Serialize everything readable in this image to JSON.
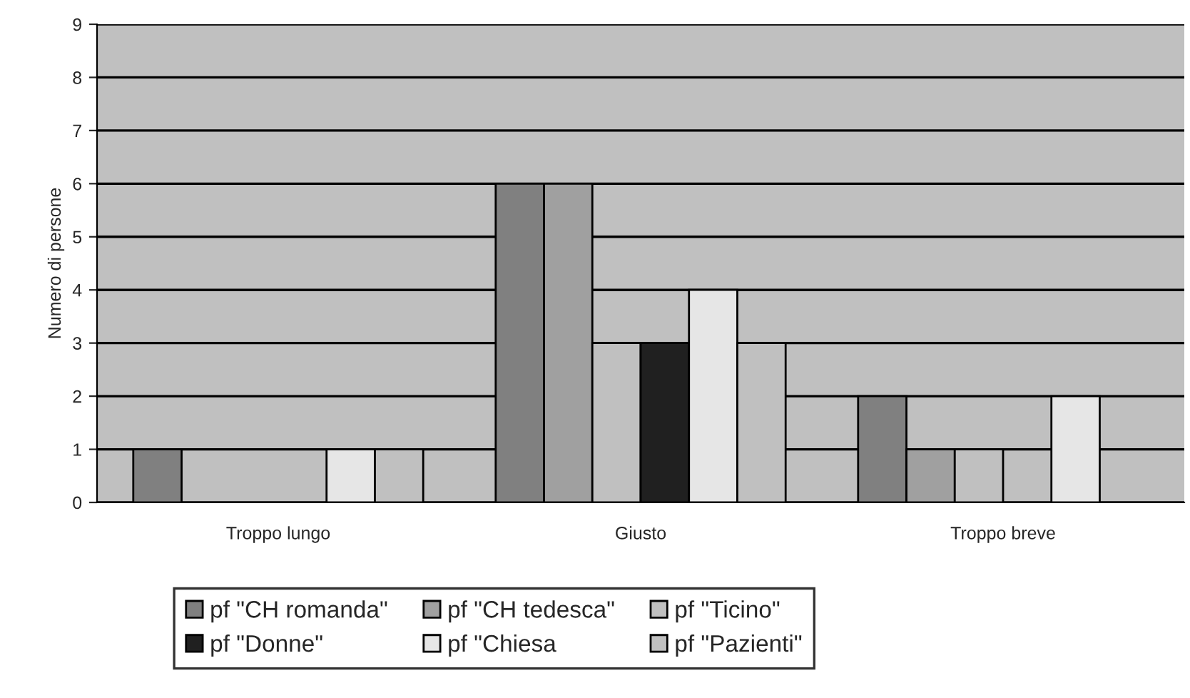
{
  "chart_data": {
    "type": "bar",
    "ylabel": "Numero di persone",
    "categories": [
      "Troppo lungo",
      "Giusto",
      "Troppo breve"
    ],
    "series": [
      {
        "name": "pf \"CH romanda\"",
        "color": "#808080",
        "values": [
          1,
          6,
          2
        ]
      },
      {
        "name": "pf \"CH tedesca\"",
        "color": "#a0a0a0",
        "values": [
          0,
          6,
          1
        ]
      },
      {
        "name": "pf \"Ticino\"",
        "color": "#c0c0c0",
        "values": [
          0,
          3,
          1
        ]
      },
      {
        "name": "pf \"Donne\"",
        "color": "#202020",
        "values": [
          0,
          3,
          0
        ]
      },
      {
        "name": "pf \"Chiesa",
        "color": "#e6e6e6",
        "values": [
          1,
          4,
          2
        ]
      },
      {
        "name": "pf \"Pazienti\"",
        "color": "#c0c0c0",
        "values": [
          1,
          3,
          0
        ]
      }
    ],
    "ylim": [
      0,
      9
    ],
    "yticks": [
      0,
      1,
      2,
      3,
      4,
      5,
      6,
      7,
      8,
      9
    ],
    "grid": "y",
    "legend": "bottom"
  }
}
